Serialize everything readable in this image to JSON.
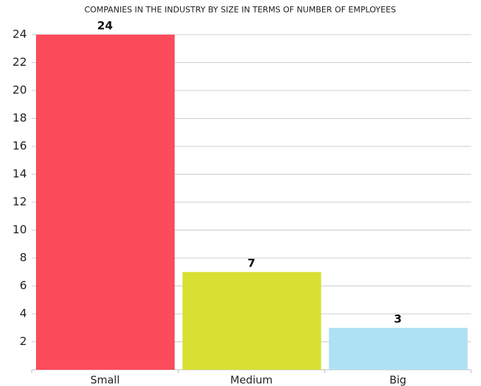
{
  "chart_data": {
    "type": "bar",
    "title": "COMPANIES IN THE INDUSTRY BY SIZE IN TERMS OF NUMBER OF EMPLOYEES",
    "categories": [
      "Small",
      "Medium",
      "Big"
    ],
    "values": [
      24,
      7,
      3
    ],
    "colors": [
      "#fc4b5b",
      "#d7e033",
      "#ade1f3"
    ],
    "ylim": [
      0,
      24
    ],
    "yticks": [
      2,
      4,
      6,
      8,
      10,
      12,
      14,
      16,
      18,
      20,
      22,
      24
    ],
    "grid": true
  }
}
